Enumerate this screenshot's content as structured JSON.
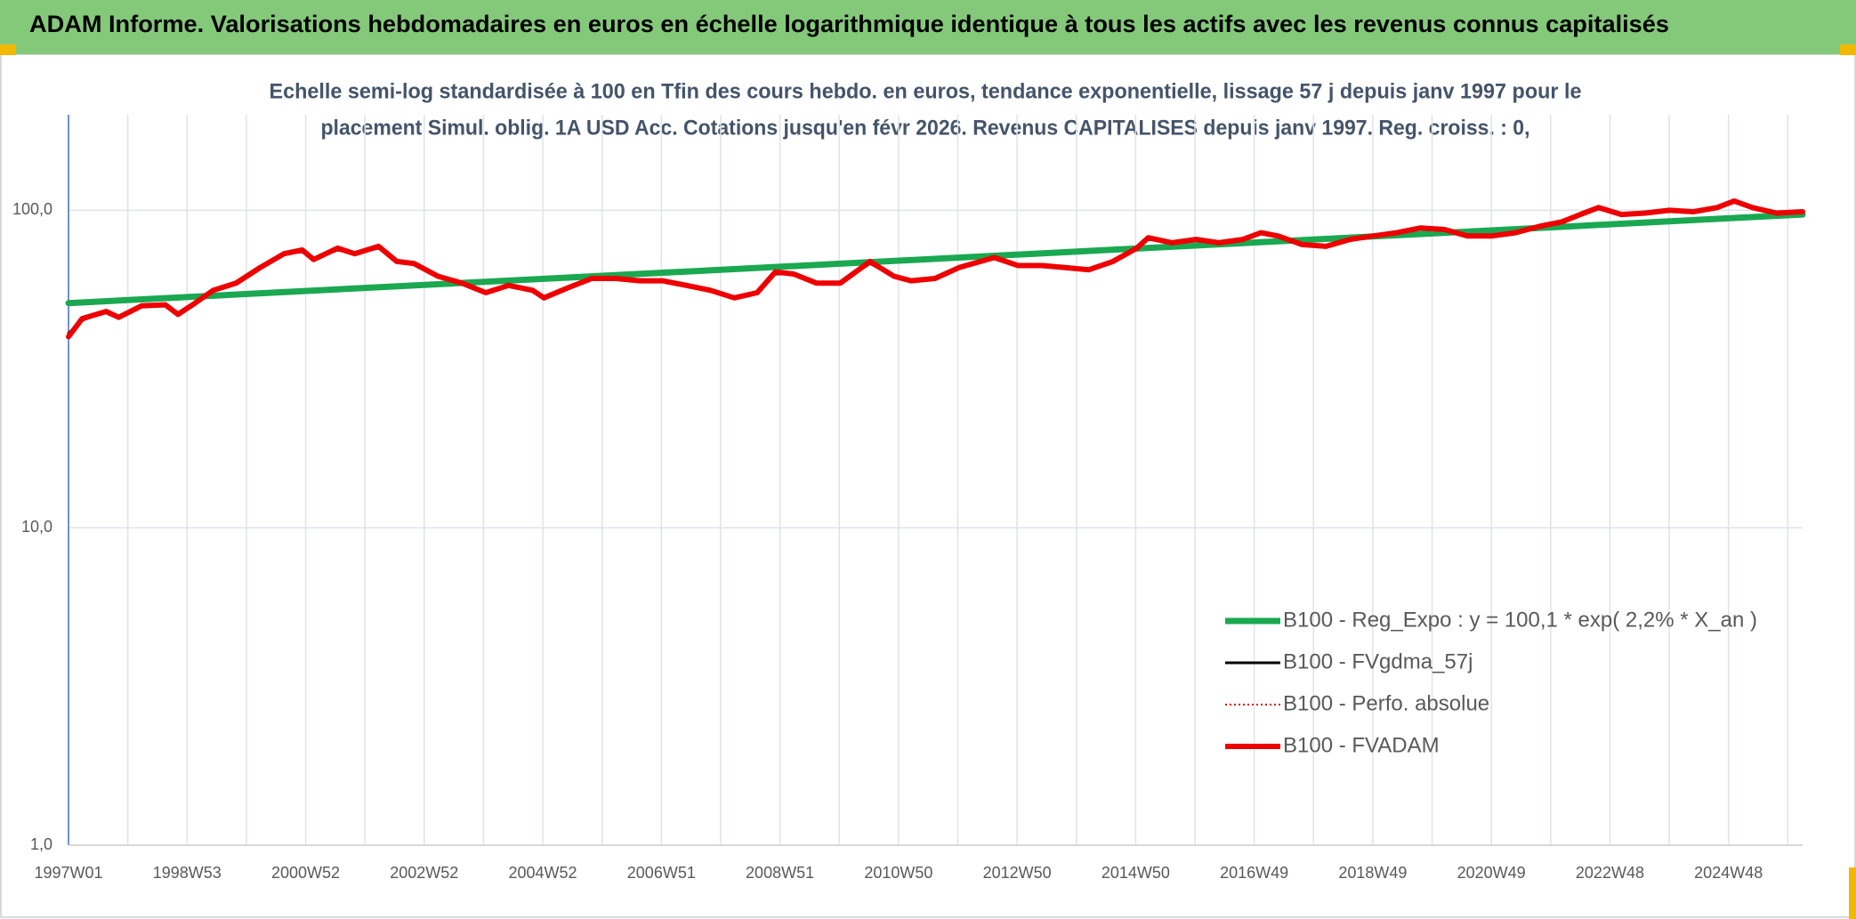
{
  "chart_data": {
    "type": "line",
    "title": "ADAM Informe. Valorisations hebdomadaires en euros en échelle logarithmique identique à tous les actifs avec les revenus connus capitalisés",
    "subtitle": [
      "Echelle semi-log standardisée à 100 en Tfin des cours hebdo. en euros, tendance exponentielle, lissage 57 j depuis janv 1997 pour le",
      "placement Simul. oblig. 1A USD Acc. Cotations jusqu'en févr 2026. Revenus CAPITALISES depuis janv 1997. Reg. croiss. : 0,"
    ],
    "log_scale": true,
    "grid": true,
    "legend": "lower right",
    "xlim": [
      0,
      1521
    ],
    "xticks": [
      {
        "value": 0,
        "label": "1997W01"
      },
      {
        "value": 104,
        "label": "1998W53"
      },
      {
        "value": 208,
        "label": "2000W52"
      },
      {
        "value": 312,
        "label": "2002W52"
      },
      {
        "value": 416,
        "label": "2004W52"
      },
      {
        "value": 520,
        "label": "2006W51"
      },
      {
        "value": 624,
        "label": "2008W51"
      },
      {
        "value": 728,
        "label": "2010W50"
      },
      {
        "value": 832,
        "label": "2012W50"
      },
      {
        "value": 936,
        "label": "2014W50"
      },
      {
        "value": 1040,
        "label": "2016W49"
      },
      {
        "value": 1144,
        "label": "2018W49"
      },
      {
        "value": 1248,
        "label": "2020W49"
      },
      {
        "value": 1352,
        "label": "2022W48"
      },
      {
        "value": 1456,
        "label": "2024W48"
      }
    ],
    "ylim": [
      1,
      200
    ],
    "yticks": [
      {
        "value": 1,
        "label": "1,0"
      },
      {
        "value": 10,
        "label": "10,0"
      },
      {
        "value": 100,
        "label": "100,0"
      }
    ],
    "x": [
      0,
      12,
      33,
      44,
      64,
      85,
      96,
      111,
      127,
      147,
      168,
      189,
      205,
      215,
      236,
      251,
      272,
      288,
      303,
      324,
      345,
      366,
      386,
      407,
      417,
      438,
      459,
      480,
      501,
      521,
      542,
      563,
      584,
      604,
      620,
      636,
      656,
      677,
      703,
      724,
      739,
      760,
      781,
      812,
      833,
      854,
      874,
      895,
      916,
      937,
      947,
      968,
      989,
      1009,
      1030,
      1046,
      1061,
      1082,
      1103,
      1124,
      1144,
      1165,
      1186,
      1207,
      1227,
      1248,
      1269,
      1290,
      1310,
      1326,
      1342,
      1362,
      1383,
      1404,
      1425,
      1446,
      1461,
      1477,
      1498,
      1521
    ],
    "series": [
      {
        "name": "B100 - Reg_Expo : y = 100,1 * exp( 2,2% *  X_an )",
        "color": "#1aa851",
        "x": [
          0,
          1521
        ],
        "values": [
          51,
          97
        ]
      },
      {
        "name": "B100 - FVgdma_57j",
        "color": "#000000",
        "values": [
          41,
          45,
          48,
          46,
          50,
          50,
          47,
          51,
          56,
          59,
          66,
          73,
          74,
          70,
          75,
          73,
          76,
          69,
          68,
          62,
          59,
          55,
          58,
          56,
          53,
          57,
          61,
          61,
          60,
          60,
          58,
          56,
          53,
          55,
          63,
          63,
          59,
          59,
          68,
          62,
          60,
          61,
          66,
          71,
          67,
          67,
          66,
          65,
          69,
          76,
          81,
          79,
          81,
          79,
          81,
          85,
          83,
          78,
          77,
          81,
          83,
          85,
          88,
          87,
          83,
          83,
          85,
          89,
          92,
          97,
          101,
          97,
          98,
          100,
          99,
          102,
          106,
          102,
          98,
          99
        ]
      },
      {
        "name": "B100 - Perfo. absolue",
        "color": "#e00000",
        "dash": "dotted",
        "values": [
          40,
          45.6,
          48,
          46,
          50,
          50.4,
          47,
          51,
          56,
          59,
          66,
          73,
          75,
          70,
          76,
          73,
          77,
          69,
          68,
          62,
          59,
          55,
          58,
          56,
          53,
          57,
          61,
          61,
          60,
          60,
          58,
          56,
          53,
          55,
          64,
          63,
          59,
          59,
          69,
          62,
          60,
          61,
          66,
          71,
          67,
          67,
          66,
          65,
          69,
          76,
          82,
          79,
          81,
          79,
          81,
          85,
          83,
          78,
          77,
          81,
          83,
          85,
          88,
          87,
          83,
          83,
          85,
          89,
          92,
          97,
          102,
          97,
          98,
          100,
          99,
          102,
          107,
          102,
          98,
          99
        ]
      },
      {
        "name": "B100 - FVADAM",
        "color": "#ee0000",
        "values": [
          40,
          45.6,
          48,
          46,
          50,
          50.4,
          47,
          51,
          56,
          59,
          66,
          73,
          75,
          70,
          76,
          73,
          77,
          69,
          68,
          62,
          59,
          55,
          58,
          56,
          53,
          57,
          61,
          61,
          60,
          60,
          58,
          56,
          53,
          55,
          64,
          63,
          59,
          59,
          69,
          62,
          60,
          61,
          66,
          71,
          67,
          67,
          66,
          65,
          69,
          76,
          82,
          79,
          81,
          79,
          81,
          85,
          83,
          78,
          77,
          81,
          83,
          85,
          88,
          87,
          83,
          83,
          85,
          89,
          92,
          97,
          102,
          97,
          98,
          100,
          99,
          102,
          107,
          102,
          98,
          99
        ]
      }
    ]
  }
}
